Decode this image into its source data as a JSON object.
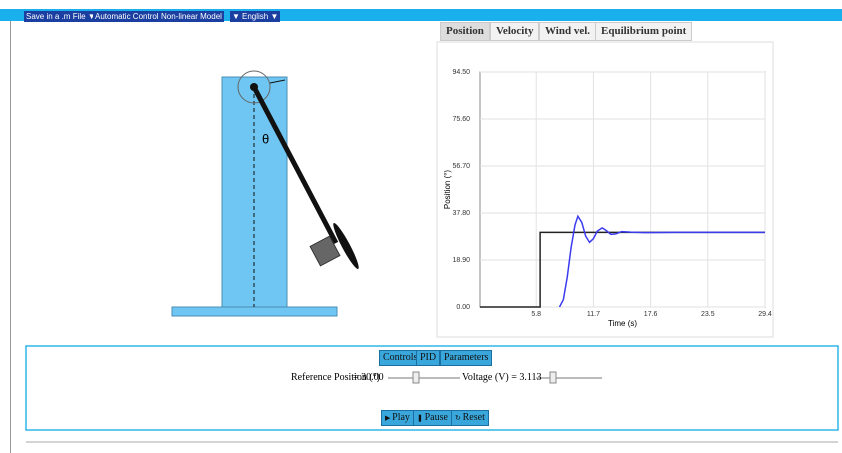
{
  "toolbar": {
    "items": [
      "Save in a .m File ▼",
      "Automatic Control ▼",
      "Non-linear Model",
      "▼",
      "English ▼"
    ]
  },
  "diagram": {
    "angle_label": "θ"
  },
  "chart_tabs": [
    "Position",
    "Velocity",
    "Wind vel.",
    "Equilibrium point"
  ],
  "chart_data": {
    "type": "line",
    "xlabel": "Time (s)",
    "ylabel": "Position (°)",
    "xlim": [
      0,
      29.4
    ],
    "xticks": [
      5.8,
      11.7,
      17.6,
      23.5,
      29.4
    ],
    "ylim": [
      0,
      94.5
    ],
    "yticks": [
      {
        "value": 0,
        "label": "0.00"
      },
      {
        "value": 18.9,
        "label": "18.90"
      },
      {
        "value": 37.8,
        "label": "37.80"
      },
      {
        "value": 56.7,
        "label": "56.70"
      },
      {
        "value": 75.6,
        "label": "75.60"
      },
      {
        "value": 94.5,
        "label": "94.50"
      }
    ],
    "grid": true,
    "series": [
      {
        "color": "#222222",
        "x": [
          0,
          6.2,
          6.2,
          29.4
        ],
        "values": [
          0,
          0,
          30,
          30
        ]
      },
      {
        "color": "#3b3bf0",
        "x": [
          8.2,
          8.6,
          9.0,
          9.4,
          9.8,
          10.1,
          10.5,
          10.9,
          11.3,
          11.7,
          12.1,
          12.6,
          13.0,
          13.5,
          14.0,
          14.6,
          15.5,
          17.0,
          20.0,
          29.4
        ],
        "values": [
          0,
          3,
          12,
          24,
          33,
          36.5,
          34,
          28.5,
          26,
          27.5,
          30.5,
          31.8,
          30.8,
          29.2,
          29.4,
          30.3,
          30.1,
          29.9,
          30,
          30
        ]
      }
    ]
  },
  "controls": {
    "tabs": [
      "Controls",
      "PID",
      "Parameters"
    ],
    "reference_label": "Reference Position (°)",
    "reference_value": "= 30.00",
    "voltage_label": "Voltage (V) = 3.113",
    "buttons": [
      "Play",
      "Pause",
      "Reset"
    ]
  }
}
